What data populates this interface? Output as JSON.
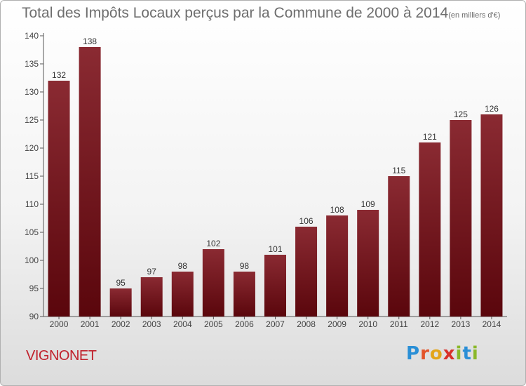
{
  "chart_data": {
    "type": "bar",
    "title": "Total des Impôts Locaux perçus par la Commune de 2000 à 2014",
    "subtitle": "(en milliers d'€)",
    "categories": [
      "2000",
      "2001",
      "2002",
      "2003",
      "2004",
      "2005",
      "2006",
      "2007",
      "2008",
      "2009",
      "2010",
      "2011",
      "2012",
      "2013",
      "2014"
    ],
    "values": [
      132,
      138,
      95,
      97,
      98,
      102,
      98,
      101,
      106,
      108,
      109,
      115,
      121,
      125,
      126
    ],
    "ylim": [
      90,
      140
    ],
    "yticks": [
      90,
      95,
      100,
      105,
      110,
      115,
      120,
      125,
      130,
      135,
      140
    ],
    "xlabel": "",
    "ylabel": "",
    "grid": false,
    "bar_color": "#7b1a22"
  },
  "commune_name": "VIGNONET",
  "brand": {
    "letters": [
      "P",
      "r",
      "o",
      "x",
      "i",
      "t",
      "i"
    ],
    "colors": [
      "#2a8fd6",
      "#e3542a",
      "#e3a51a",
      "#d9302a",
      "#8ab82a",
      "#2a8fd6",
      "#8ab82a"
    ]
  }
}
